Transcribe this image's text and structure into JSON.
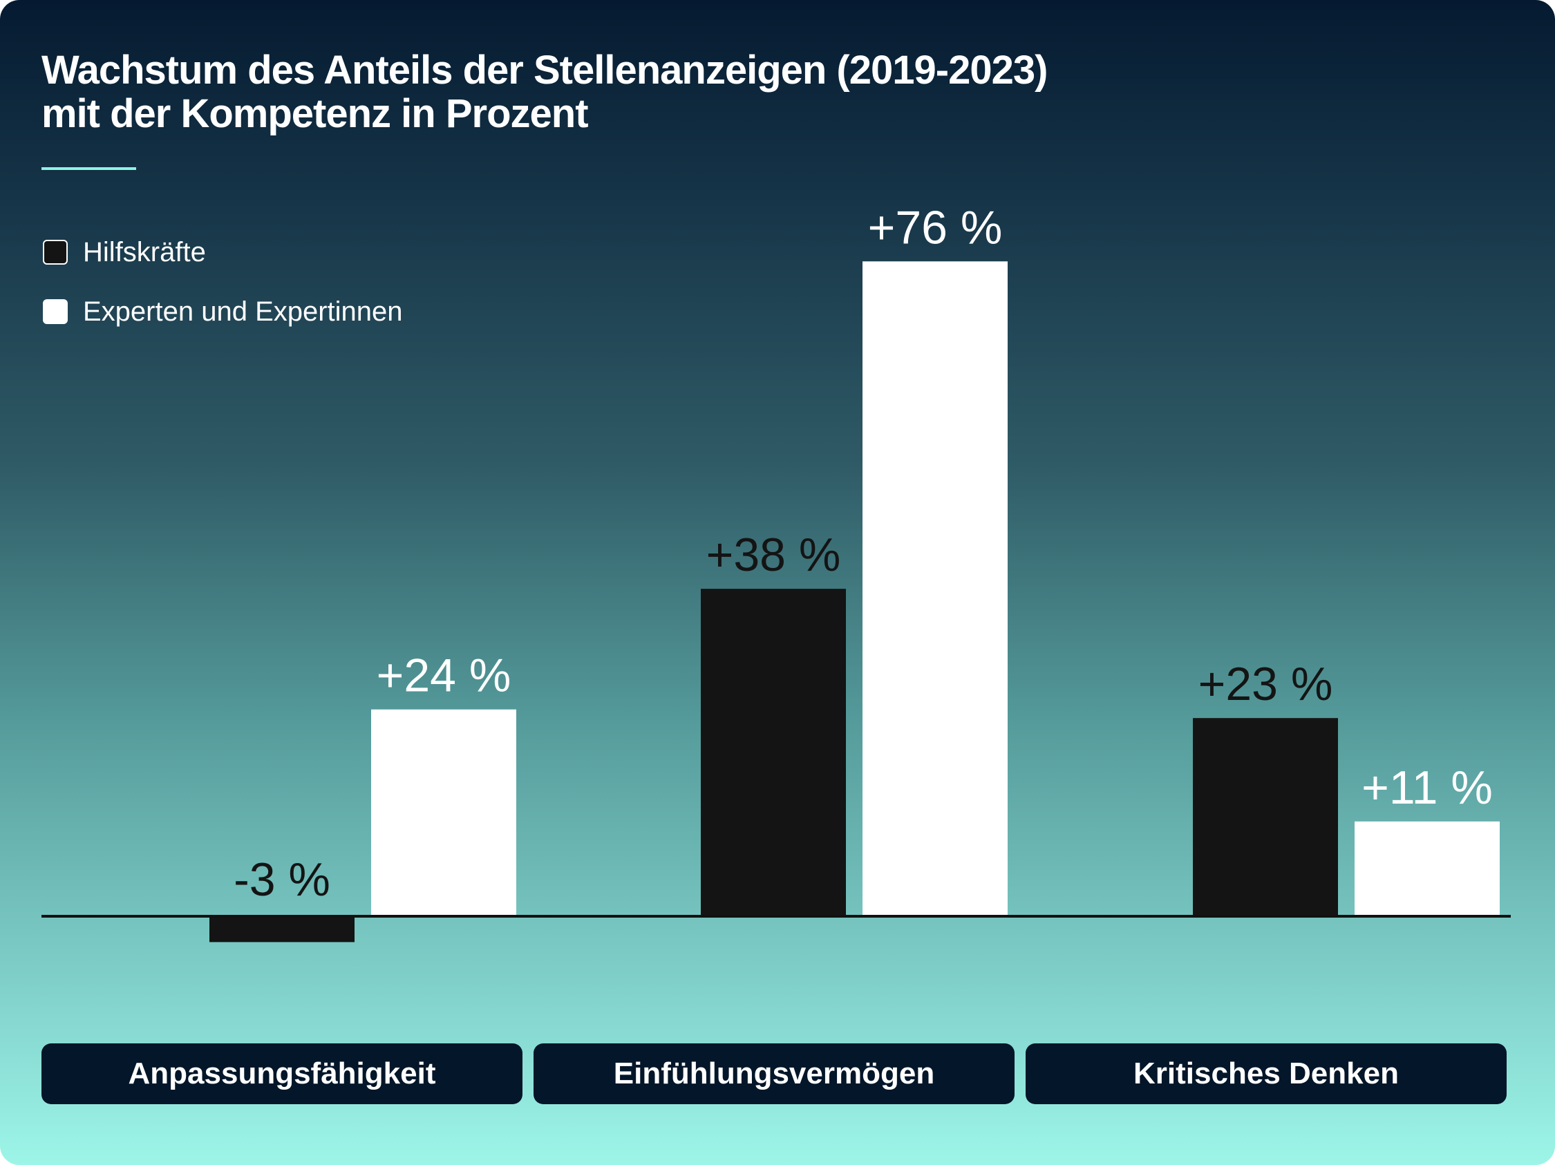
{
  "chart_data": {
    "type": "bar",
    "title_lines": [
      "Wachstum des Anteils der Stellenanzeigen (2019-2023)",
      "mit der Kompetenz in Prozent"
    ],
    "categories": [
      "Anpassungsfähigkeit",
      "Einfühlungsvermögen",
      "Kritisches Denken"
    ],
    "series": [
      {
        "name": "Hilfskräfte",
        "values": [
          -3,
          38,
          23
        ],
        "labels": [
          "-3 %",
          "+38 %",
          "+23 %"
        ],
        "color": "#141414"
      },
      {
        "name": "Experten und Expertinnen",
        "values": [
          24,
          76,
          11
        ],
        "labels": [
          "+24 %",
          "+76 %",
          "+11 %"
        ],
        "color": "#ffffff"
      }
    ],
    "ylim": [
      -5,
      80
    ],
    "grid": false,
    "legend_position": "top-left",
    "colors": {
      "accent": "#8ef3e6",
      "dark_bar": "#141414",
      "light_bar": "#ffffff",
      "category_box": "#041629",
      "baseline": "#111111"
    }
  }
}
